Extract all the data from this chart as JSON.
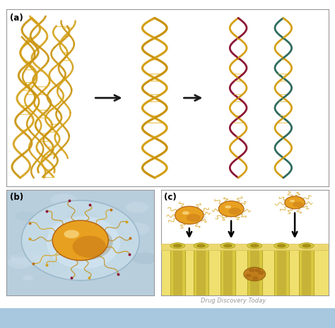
{
  "bg_color": "#ffffff",
  "page_bg": "#ffffff",
  "bottom_bar_color": "#a8c8e0",
  "panel_a_bg": "#ffffff",
  "panel_b_bg": "#c0d8e8",
  "panel_c_bg": "#ffffff",
  "border_color": "#888888",
  "label_a": "(a)",
  "label_b": "(b)",
  "label_c": "(c)",
  "citation": "Drug Discovery Today",
  "citation_color": "#999999",
  "dna_gold1": "#D4A017",
  "dna_gold2": "#C8920A",
  "dna_gold3": "#E8B830",
  "dna_red": "#8B1535",
  "dna_teal": "#2E6B5E",
  "dna_dark_gold": "#A07008",
  "arrow_color": "#1a1a1a",
  "np_orange": "#E8A020",
  "np_dark": "#B06010",
  "np_light": "#F0C060",
  "cell_yellow": "#ECD870",
  "cell_yellow2": "#D4C050",
  "cell_dark": "#B8A030",
  "membrane_bg": "#F0E070",
  "tube_color": "#D8C840",
  "tube_dark": "#B0A020",
  "label_fontsize": 8.5,
  "citation_fontsize": 6.0
}
